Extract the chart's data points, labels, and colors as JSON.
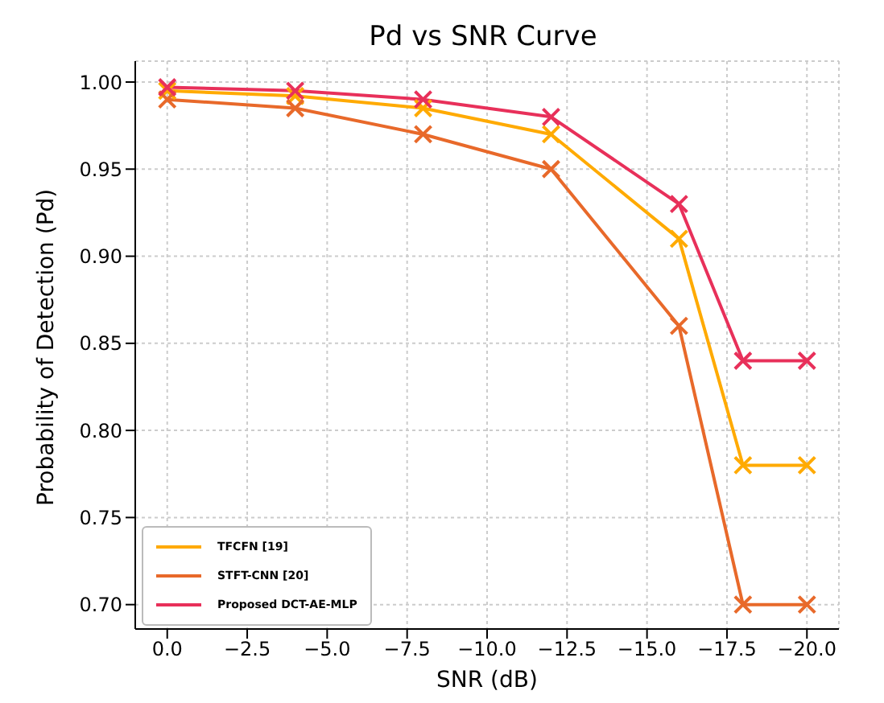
{
  "chart_data": {
    "type": "line",
    "title": "Pd vs SNR Curve",
    "xlabel": "SNR (dB)",
    "ylabel": "Probability of Detection (Pd)",
    "x": [
      0,
      -4,
      -8,
      -12,
      -16,
      -18,
      -20
    ],
    "series": [
      {
        "name": "TFCFN [19]",
        "color": "#ffaa00",
        "values": [
          0.995,
          0.992,
          0.985,
          0.97,
          0.91,
          0.78,
          0.78
        ]
      },
      {
        "name": "STFT-CNN [20]",
        "color": "#e8692a",
        "values": [
          0.99,
          0.985,
          0.97,
          0.95,
          0.86,
          0.7,
          0.7
        ]
      },
      {
        "name": "Proposed DCT-AE-MLP",
        "color": "#e8305a",
        "values": [
          0.997,
          0.995,
          0.99,
          0.98,
          0.93,
          0.84,
          0.84
        ]
      }
    ],
    "xlim": [
      1,
      -21
    ],
    "xticks": [
      {
        "value": 0,
        "label": "0.0"
      },
      {
        "value": -2.5,
        "label": "−2.5"
      },
      {
        "value": -5,
        "label": "−5.0"
      },
      {
        "value": -7.5,
        "label": "−7.5"
      },
      {
        "value": -10,
        "label": "−10.0"
      },
      {
        "value": -12.5,
        "label": "−12.5"
      },
      {
        "value": -15,
        "label": "−15.0"
      },
      {
        "value": -17.5,
        "label": "−17.5"
      },
      {
        "value": -20,
        "label": "−20.0"
      }
    ],
    "ylim": [
      0.686,
      1.012
    ],
    "yticks": [
      {
        "value": 0.7,
        "label": "0.70"
      },
      {
        "value": 0.75,
        "label": "0.75"
      },
      {
        "value": 0.8,
        "label": "0.80"
      },
      {
        "value": 0.85,
        "label": "0.85"
      },
      {
        "value": 0.9,
        "label": "0.90"
      },
      {
        "value": 0.95,
        "label": "0.95"
      },
      {
        "value": 1.0,
        "label": "1.00"
      }
    ],
    "grid": true,
    "legend": "bottom left",
    "marker": "cross",
    "line_style": "solid"
  }
}
